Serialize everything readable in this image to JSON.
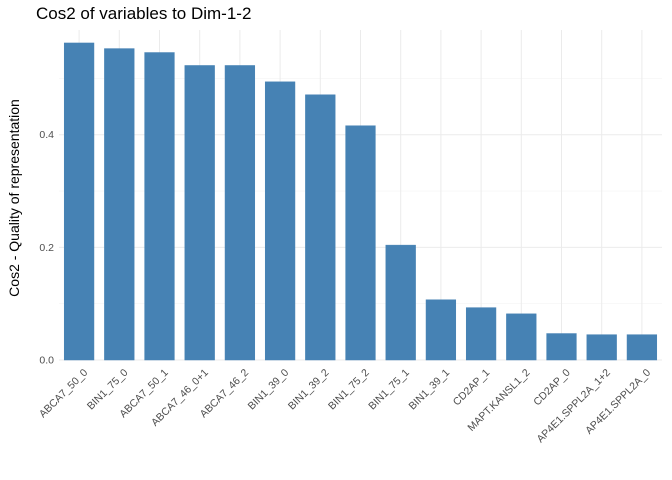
{
  "chart_data": {
    "type": "bar",
    "title": "Cos2 of variables to Dim-1-2",
    "xlabel": "",
    "ylabel": "Cos2 - Quality of representation",
    "ylim": [
      0,
      0.586
    ],
    "yticks": [
      0.0,
      0.2,
      0.4
    ],
    "ytick_labels": [
      "0.0",
      "0.2",
      "0.4"
    ],
    "grid": true,
    "bar_color": "#4682B4",
    "categories": [
      "ABCA7_50_0",
      "BIN1_75_0",
      "ABCA7_50_1",
      "ABCA7_46_0+1",
      "ABCA7_46_2",
      "BIN1_39_0",
      "BIN1_39_2",
      "BIN1_75_2",
      "BIN1_75_1",
      "BIN1_39_1",
      "CD2AP_1",
      "MAPT.KANSL1_2",
      "CD2AP_0",
      "AP4E1.SPPL2A_1+2",
      "AP4E1.SPPL2A_0"
    ],
    "values": [
      0.563,
      0.553,
      0.546,
      0.523,
      0.523,
      0.494,
      0.471,
      0.416,
      0.204,
      0.107,
      0.093,
      0.082,
      0.047,
      0.045,
      0.045
    ]
  }
}
